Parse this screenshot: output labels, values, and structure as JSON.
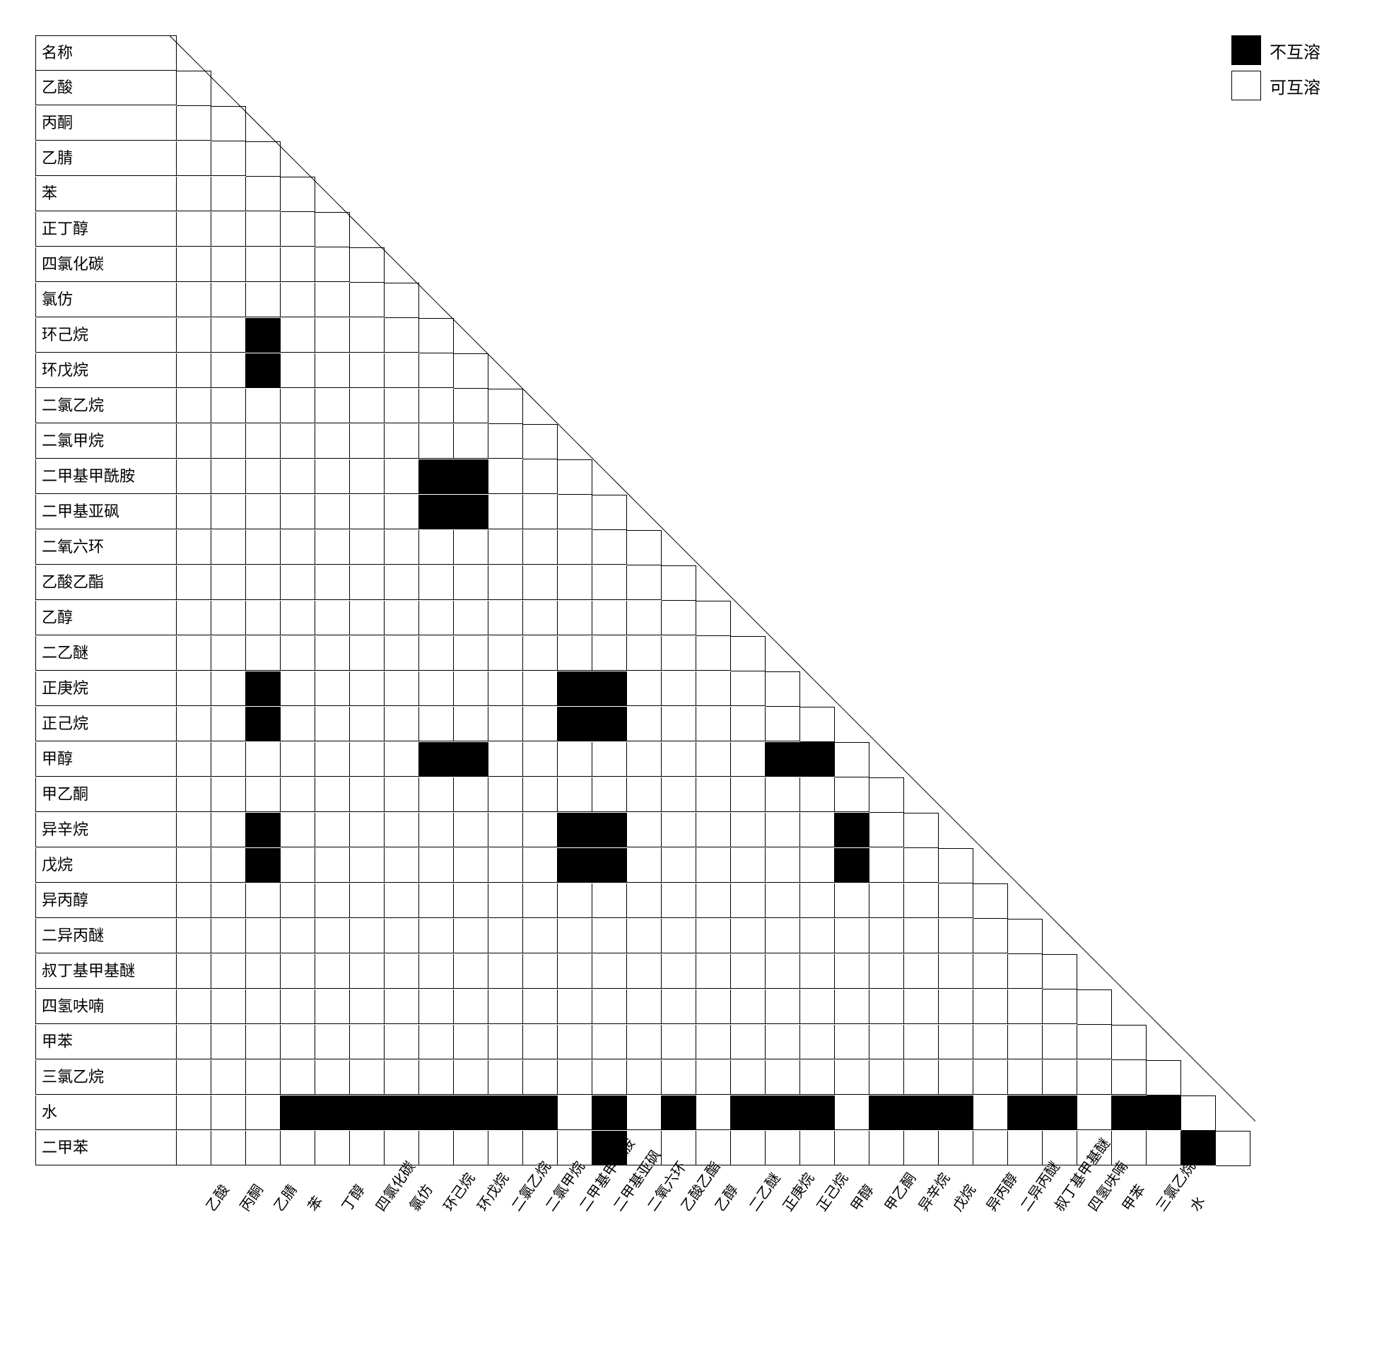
{
  "chart": {
    "type": "triangular-miscibility-matrix",
    "cell_size": 48,
    "label_col_width": 190,
    "background_color": "#ffffff",
    "border_color": "#000000",
    "fill_immiscible": "#000000",
    "fill_miscible": "#ffffff",
    "font_size_row": 22,
    "font_size_col": 20,
    "header_label": "名称",
    "row_labels": [
      "乙酸",
      "丙酮",
      "乙腈",
      "苯",
      "正丁醇",
      "四氯化碳",
      "氯仿",
      "环己烷",
      "环戊烷",
      "二氯乙烷",
      "二氯甲烷",
      "二甲基甲酰胺",
      "二甲基亚砜",
      "二氧六环",
      "乙酸乙酯",
      "乙醇",
      "二乙醚",
      "正庚烷",
      "正己烷",
      "甲醇",
      "甲乙酮",
      "异辛烷",
      "戊烷",
      "异丙醇",
      "二异丙醚",
      "叔丁基甲基醚",
      "四氢呋喃",
      "甲苯",
      "三氯乙烷",
      "水",
      "二甲苯"
    ],
    "col_labels": [
      "乙酸",
      "丙酮",
      "乙腈",
      "苯",
      "丁醇",
      "四氯化碳",
      "氯仿",
      "环己烷",
      "环戊烷",
      "二氯乙烷",
      "二氯甲烷",
      "二甲基甲酰胺",
      "二甲基亚砜",
      "二氧六环",
      "乙酸乙酯",
      "乙醇",
      "二乙醚",
      "正庚烷",
      "正己烷",
      "甲醇",
      "甲乙酮",
      "异辛烷",
      "戊烷",
      "异丙醇",
      "二异丙醚",
      "叔丁基甲基醚",
      "四氢呋喃",
      "甲苯",
      "三氯乙烷",
      "水"
    ],
    "immiscible_pairs": [
      [
        7,
        2
      ],
      [
        8,
        2
      ],
      [
        11,
        7
      ],
      [
        11,
        8
      ],
      [
        12,
        7
      ],
      [
        12,
        8
      ],
      [
        17,
        2
      ],
      [
        18,
        2
      ],
      [
        17,
        11
      ],
      [
        17,
        12
      ],
      [
        18,
        11
      ],
      [
        18,
        12
      ],
      [
        19,
        7
      ],
      [
        19,
        8
      ],
      [
        19,
        17
      ],
      [
        19,
        18
      ],
      [
        21,
        2
      ],
      [
        22,
        2
      ],
      [
        21,
        11
      ],
      [
        21,
        12
      ],
      [
        22,
        11
      ],
      [
        22,
        12
      ],
      [
        21,
        19
      ],
      [
        22,
        19
      ],
      [
        29,
        3
      ],
      [
        29,
        4
      ],
      [
        29,
        5
      ],
      [
        29,
        6
      ],
      [
        29,
        7
      ],
      [
        29,
        8
      ],
      [
        29,
        9
      ],
      [
        29,
        10
      ],
      [
        29,
        12
      ],
      [
        29,
        14
      ],
      [
        29,
        16
      ],
      [
        29,
        17
      ],
      [
        29,
        18
      ],
      [
        29,
        20
      ],
      [
        29,
        21
      ],
      [
        29,
        22
      ],
      [
        29,
        24
      ],
      [
        29,
        25
      ],
      [
        29,
        27
      ],
      [
        29,
        28
      ],
      [
        30,
        12
      ],
      [
        30,
        29
      ]
    ]
  },
  "legend": {
    "immiscible": "不互溶",
    "miscible": "可互溶"
  }
}
